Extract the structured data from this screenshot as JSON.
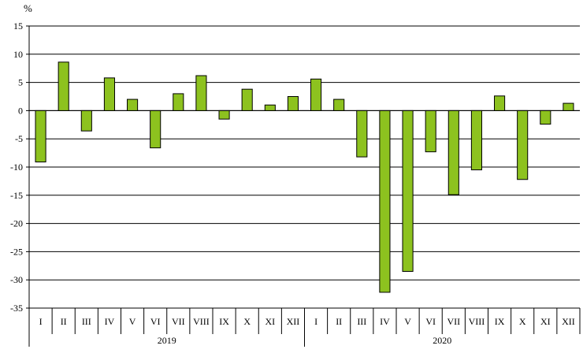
{
  "chart_data": {
    "type": "bar",
    "unit_label": "%",
    "ylim": [
      -35,
      15
    ],
    "yticks": [
      15,
      10,
      5,
      0,
      -5,
      -10,
      -15,
      -20,
      -25,
      -30,
      -35
    ],
    "ytick_labels": [
      "15",
      "10",
      "5",
      "0",
      "-5",
      "-10",
      "-15",
      "-20",
      "-25",
      "-30",
      "-35"
    ],
    "grid": true,
    "legend": "none",
    "colors": {
      "bar_fill": "#8dc21f",
      "bar_stroke": "#000000",
      "grid": "#000000"
    },
    "groups": [
      {
        "year": "2019",
        "categories": [
          "I",
          "II",
          "III",
          "IV",
          "V",
          "VI",
          "VII",
          "VIII",
          "IX",
          "X",
          "XI",
          "XII"
        ],
        "values": [
          -9.1,
          8.6,
          -3.6,
          5.8,
          2.0,
          -6.6,
          3.0,
          6.2,
          -1.5,
          3.8,
          1.0,
          2.5
        ]
      },
      {
        "year": "2020",
        "categories": [
          "I",
          "II",
          "III",
          "IV",
          "V",
          "VI",
          "VII",
          "VIII",
          "IX",
          "X",
          "XI",
          "XII"
        ],
        "values": [
          5.6,
          2.0,
          -8.2,
          -32.2,
          -28.5,
          -7.3,
          -14.9,
          -10.5,
          2.6,
          -12.2,
          -2.4,
          1.3
        ]
      }
    ]
  }
}
